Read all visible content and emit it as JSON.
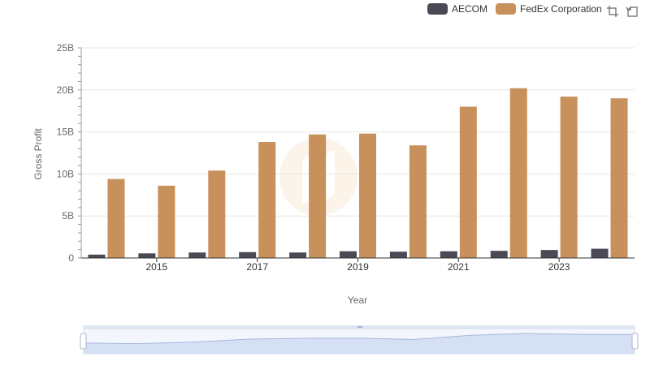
{
  "chart_data": {
    "type": "bar",
    "title": "",
    "xlabel": "Year",
    "ylabel": "Gross Profit",
    "ylim": [
      0,
      25000000000
    ],
    "yticks": [
      "0",
      "5B",
      "10B",
      "15B",
      "20B",
      "25B"
    ],
    "x": [
      2014,
      2015,
      2016,
      2017,
      2018,
      2019,
      2020,
      2021,
      2022,
      2023,
      2024
    ],
    "xtick_labels": [
      "2015",
      "2017",
      "2019",
      "2021",
      "2023"
    ],
    "series": [
      {
        "name": "AECOM",
        "color": "#4a4a56",
        "values": [
          400000000,
          550000000,
          650000000,
          700000000,
          650000000,
          800000000,
          750000000,
          800000000,
          850000000,
          950000000,
          1100000000
        ]
      },
      {
        "name": "FedEx Corporation",
        "color": "#c8915c",
        "values": [
          9400000000,
          8600000000,
          10400000000,
          13800000000,
          14700000000,
          14800000000,
          13400000000,
          18000000000,
          20200000000,
          19200000000,
          19000000000
        ]
      }
    ],
    "grid": true,
    "legend": "top-right"
  },
  "toolbox": {
    "zoom_icon": "data-zoom-icon",
    "restore_icon": "restore-icon"
  },
  "datazoom": {
    "start": 0,
    "end": 100
  }
}
